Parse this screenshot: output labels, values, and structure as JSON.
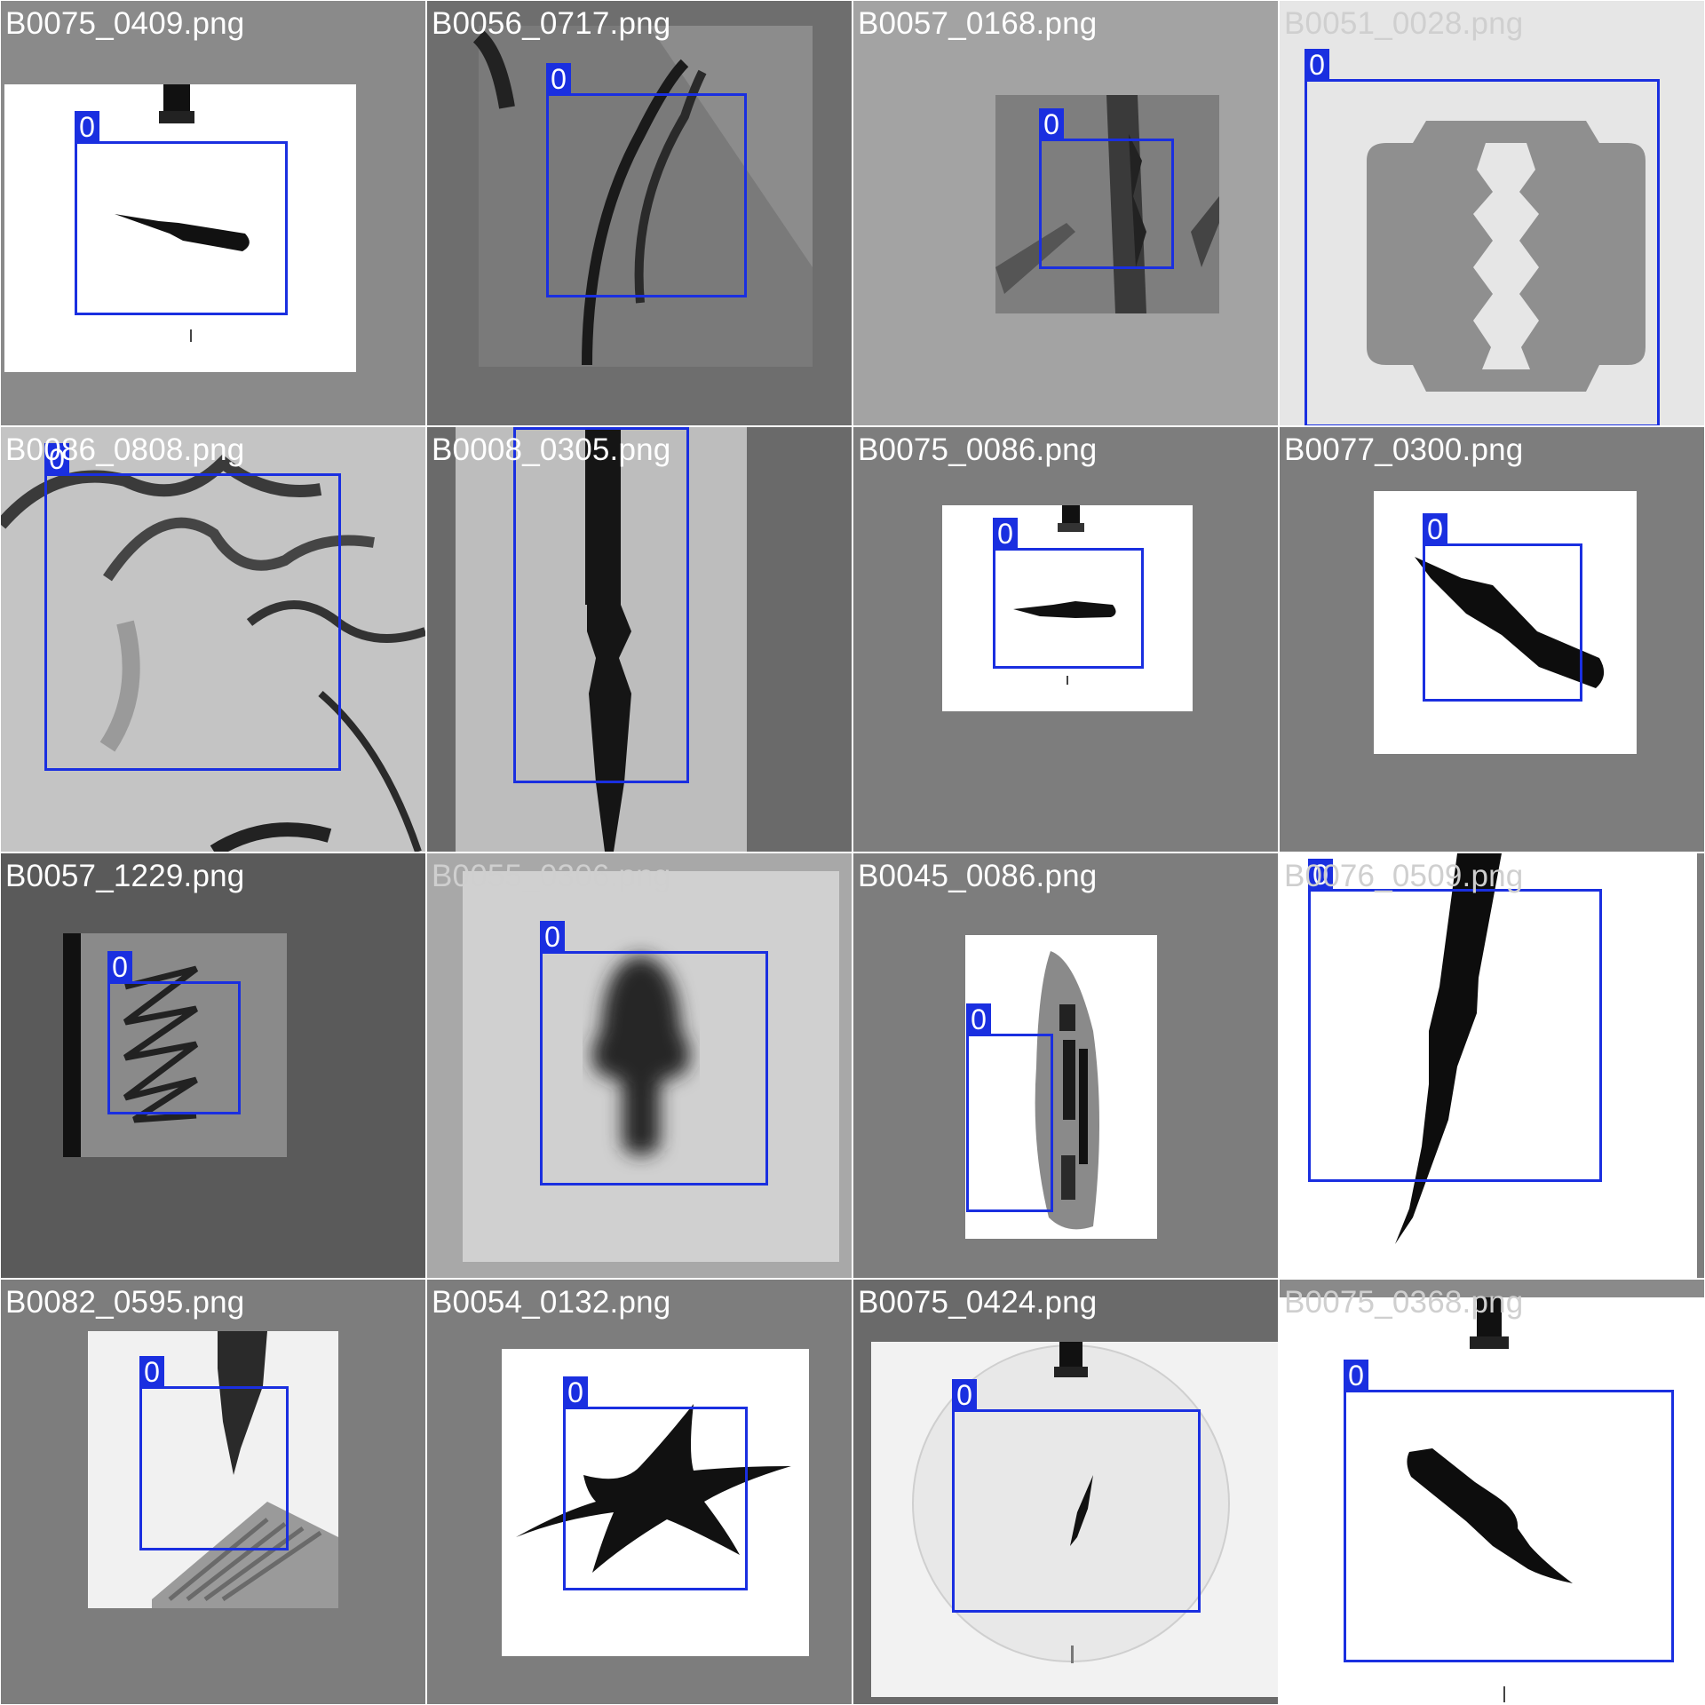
{
  "tiles": [
    {
      "filename": "B0075_0409.png",
      "label": "0",
      "scene": "knife-fold-small",
      "bg": "#8a8a8a"
    },
    {
      "filename": "B0056_0717.png",
      "label": "0",
      "scene": "closeup-grey-curve",
      "bg": "#6e6e6e"
    },
    {
      "filename": "B0057_0168.png",
      "label": "0",
      "scene": "closeup-dark-edge",
      "bg": "#a3a3a3"
    },
    {
      "filename": "B0051_0028.png",
      "label": "0",
      "scene": "razor-blade",
      "bg": "#e6e6e6"
    },
    {
      "filename": "B0086_0808.png",
      "label": "0",
      "scene": "texture-cracks",
      "bg": "#bdbdbd"
    },
    {
      "filename": "B0008_0305.png",
      "label": "0",
      "scene": "knife-vertical",
      "bg": "#6a6a6a"
    },
    {
      "filename": "B0075_0086.png",
      "label": "0",
      "scene": "knife-fold-mini",
      "bg": "#7d7d7d"
    },
    {
      "filename": "B0077_0300.png",
      "label": "0",
      "scene": "knife-fold-diagonal",
      "bg": "#7d7d7d"
    },
    {
      "filename": "B0057_1229.png",
      "label": "0",
      "scene": "spring-coil",
      "bg": "#5a5a5a"
    },
    {
      "filename": "B0055_0306.png",
      "label": "0",
      "scene": "blurred-blade",
      "bg": "#a8a8a8"
    },
    {
      "filename": "B0045_0086.png",
      "label": "0",
      "scene": "bag-with-items",
      "bg": "#7d7d7d"
    },
    {
      "filename": "B0076_0509.png",
      "label": "0",
      "scene": "knife-large-diagonal",
      "bg": "#ffffff"
    },
    {
      "filename": "B0082_0595.png",
      "label": "0",
      "scene": "knife-with-circuit",
      "bg": "#7d7d7d"
    },
    {
      "filename": "B0054_0132.png",
      "label": "0",
      "scene": "throwing-star",
      "bg": "#7d7d7d"
    },
    {
      "filename": "B0075_0424.png",
      "label": "0",
      "scene": "knife-tiny-disc",
      "bg": "#6a6a6a"
    },
    {
      "filename": "B0075_0368.png",
      "label": "0",
      "scene": "knife-fold-large",
      "bg": "#ffffff"
    }
  ],
  "colors": {
    "bbox": "#1a2fe0",
    "label_text": "#ffffff",
    "filename_text": "#ffffff"
  },
  "icons": {
    "bbox-tag": "class-label-tag"
  }
}
